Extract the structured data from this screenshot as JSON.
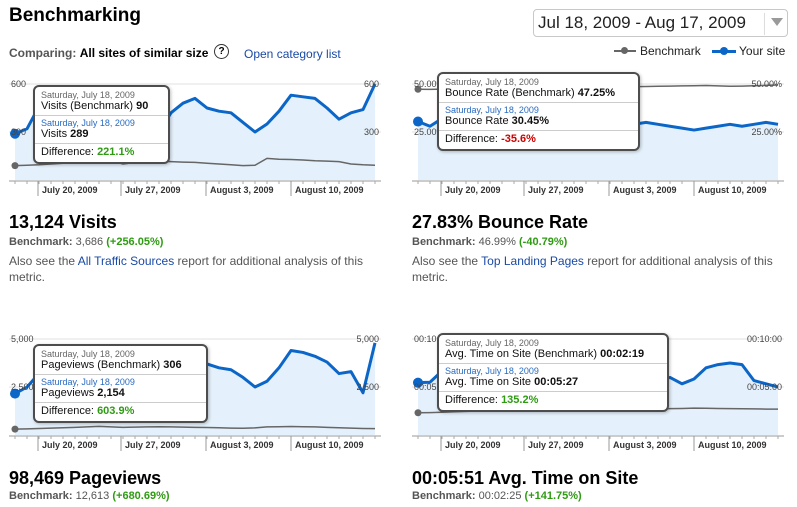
{
  "header": {
    "title": "Benchmarking",
    "date_range": "Jul 18, 2009 - Aug 17, 2009",
    "comparing_label": "Comparing:",
    "comparing_value": "All sites of similar size",
    "open_category_link": "Open category list",
    "help_icon": "question-circle-icon"
  },
  "legend": {
    "benchmark": "Benchmark",
    "your_site": "Your site",
    "benchmark_color": "#666666",
    "your_site_color": "#0b66c8"
  },
  "x_labels": [
    "July 20, 2009",
    "July 27, 2009",
    "August 3, 2009",
    "August 10, 2009"
  ],
  "panels": [
    {
      "id": "visits",
      "y_top": "600",
      "y_mid": "300",
      "y_left_top": "600",
      "y_left_mid": "300",
      "tooltip": {
        "date1": "Saturday, July 18, 2009",
        "bench_label": "Visits (Benchmark)",
        "bench_value": "90",
        "date2": "Saturday, July 18, 2009",
        "site_label": "Visits",
        "site_value": "289",
        "diff_label": "Difference:",
        "diff_value": "221.1%",
        "diff_sign": "positive"
      },
      "metric": "13,124 Visits",
      "bench_label": "Benchmark:",
      "bench_value": "3,686",
      "bench_pct": "(+256.05%)",
      "bench_sign": "positive",
      "also_pre": "Also see the",
      "also_link": "All Traffic Sources",
      "also_post": "report for additional analysis of this metric."
    },
    {
      "id": "bounce",
      "y_top": "50.00%",
      "y_mid": "25.00%",
      "y_left_top": "50.00%",
      "y_left_mid": "25.00%",
      "tooltip": {
        "date1": "Saturday, July 18, 2009",
        "bench_label": "Bounce Rate (Benchmark)",
        "bench_value": "47.25%",
        "date2": "Saturday, July 18, 2009",
        "site_label": "Bounce Rate",
        "site_value": "30.45%",
        "diff_label": "Difference:",
        "diff_value": "-35.6%",
        "diff_sign": "negative"
      },
      "metric": "27.83% Bounce Rate",
      "bench_label": "Benchmark:",
      "bench_value": "46.99%",
      "bench_pct": "(-40.79%)",
      "bench_sign": "positive",
      "also_pre": "Also see the",
      "also_link": "Top Landing Pages",
      "also_post": "report for additional analysis of this metric."
    },
    {
      "id": "pageviews",
      "y_top": "5,000",
      "y_mid": "2,500",
      "y_left_top": "5,000",
      "y_left_mid": "2,500",
      "tooltip": {
        "date1": "Saturday, July 18, 2009",
        "bench_label": "Pageviews (Benchmark)",
        "bench_value": "306",
        "date2": "Saturday, July 18, 2009",
        "site_label": "Pageviews",
        "site_value": "2,154",
        "diff_label": "Difference:",
        "diff_value": "603.9%",
        "diff_sign": "positive"
      },
      "metric": "98,469 Pageviews",
      "bench_label": "Benchmark:",
      "bench_value": "12,613",
      "bench_pct": "(+680.69%)",
      "bench_sign": "positive"
    },
    {
      "id": "timeonsite",
      "y_top": "00:10:00",
      "y_mid": "00:05:00",
      "y_left_top": "00:10:00",
      "y_left_mid": "00:05:00",
      "tooltip": {
        "date1": "Saturday, July 18, 2009",
        "bench_label": "Avg. Time on Site (Benchmark)",
        "bench_value": "00:02:19",
        "date2": "Saturday, July 18, 2009",
        "site_label": "Avg. Time on Site",
        "site_value": "00:05:27",
        "diff_label": "Difference:",
        "diff_value": "135.2%",
        "diff_sign": "positive"
      },
      "metric": "00:05:51 Avg. Time on Site",
      "bench_label": "Benchmark:",
      "bench_value": "00:02:25",
      "bench_pct": "(+141.75%)",
      "bench_sign": "positive"
    }
  ],
  "chart_data": [
    {
      "type": "line",
      "name": "visits",
      "ylim": [
        0,
        600
      ],
      "series": [
        {
          "name": "Benchmark",
          "values": [
            90,
            92,
            95,
            100,
            105,
            110,
            120,
            135,
            120,
            100,
            110,
            115,
            118,
            115,
            112,
            110,
            105,
            100,
            95,
            90,
            92,
            135,
            130,
            128,
            125,
            120,
            118,
            115,
            100,
            95,
            92
          ]
        },
        {
          "name": "Your site",
          "values": [
            289,
            320,
            460,
            500,
            430,
            420,
            470,
            440,
            350,
            380,
            390,
            450,
            300,
            420,
            480,
            510,
            450,
            430,
            420,
            360,
            300,
            350,
            430,
            530,
            520,
            510,
            450,
            380,
            420,
            440,
            600
          ]
        }
      ]
    },
    {
      "type": "line",
      "name": "bounce",
      "ylim": [
        0,
        50
      ],
      "series": [
        {
          "name": "Benchmark",
          "values": [
            47.25,
            47.2,
            47.3,
            47.4,
            47.0,
            47.5,
            47.6,
            47.8,
            47.7,
            47.6,
            47.5,
            47.6,
            47.8,
            48.0,
            48.2,
            48.3,
            48.4,
            48.5,
            48.6,
            48.7,
            48.8,
            48.9,
            49.0,
            49.1,
            49.2,
            49.0,
            48.8,
            48.9,
            49.1,
            49.3,
            49.5
          ]
        },
        {
          "name": "Your site",
          "values": [
            30.45,
            28,
            32,
            34,
            31,
            29,
            28,
            27,
            26,
            25,
            24,
            26,
            27,
            28,
            26,
            25,
            24,
            28,
            29,
            30,
            29,
            28,
            27,
            26,
            27,
            28,
            29,
            28,
            29,
            30,
            29
          ]
        }
      ]
    },
    {
      "type": "line",
      "name": "pageviews",
      "ylim": [
        0,
        5000
      ],
      "series": [
        {
          "name": "Benchmark",
          "values": [
            306,
            320,
            340,
            360,
            380,
            400,
            420,
            450,
            420,
            400,
            410,
            420,
            430,
            420,
            410,
            400,
            390,
            380,
            360,
            350,
            370,
            420,
            430,
            440,
            430,
            420,
            400,
            380,
            360,
            340,
            330
          ]
        },
        {
          "name": "Your site",
          "values": [
            2154,
            2500,
            3200,
            4200,
            3600,
            3400,
            3700,
            3500,
            2800,
            3100,
            3200,
            3600,
            2600,
            3400,
            3900,
            4300,
            3700,
            3500,
            3400,
            3000,
            2500,
            2800,
            3500,
            4400,
            4300,
            4100,
            3800,
            3200,
            3300,
            2200,
            4800
          ]
        }
      ]
    },
    {
      "type": "line",
      "name": "timeonsite",
      "ylim": [
        0,
        600
      ],
      "series": [
        {
          "name": "Benchmark",
          "values": [
            139,
            140,
            142,
            145,
            148,
            150,
            152,
            155,
            156,
            157,
            158,
            160,
            158,
            156,
            155,
            154,
            155,
            156,
            158,
            160,
            162,
            165,
            166,
            168,
            167,
            166,
            165,
            164,
            163,
            162,
            162
          ]
        },
        {
          "name": "Your site",
          "values": [
            327,
            330,
            400,
            420,
            390,
            380,
            400,
            370,
            340,
            360,
            380,
            400,
            330,
            380,
            420,
            450,
            520,
            480,
            300,
            320,
            340,
            360,
            320,
            350,
            420,
            440,
            450,
            440,
            340,
            320,
            300
          ]
        }
      ]
    }
  ]
}
